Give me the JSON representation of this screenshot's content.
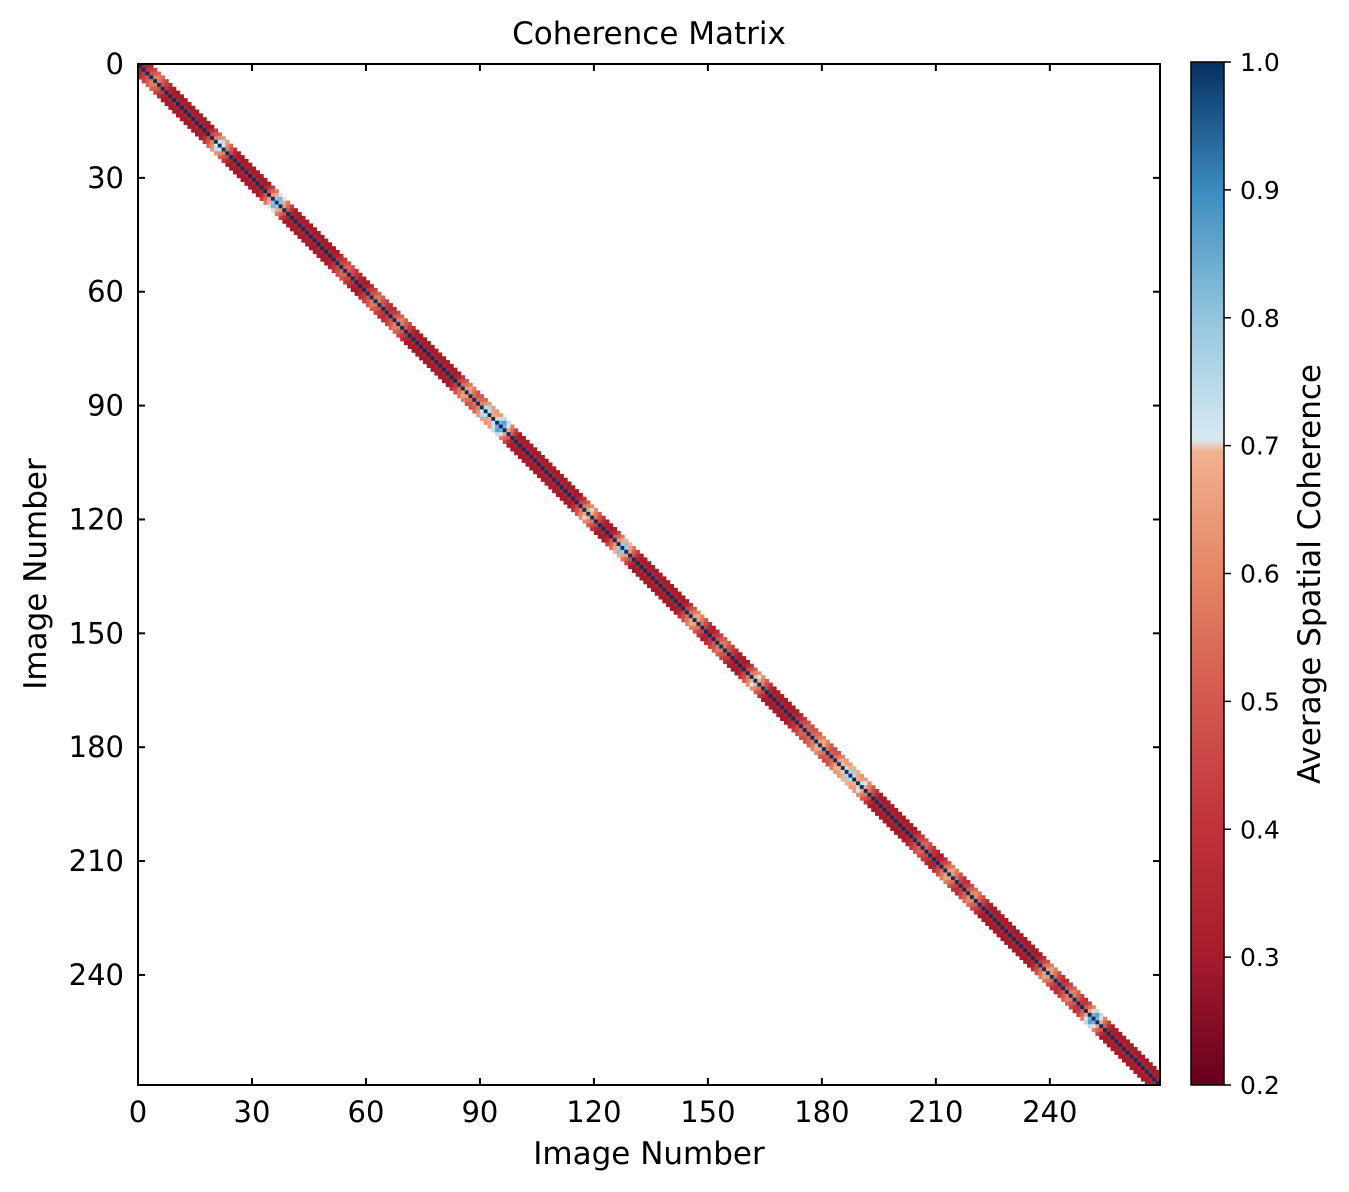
{
  "chart_data": {
    "type": "heatmap",
    "title": "Coherence Matrix",
    "xlabel": "Image Number",
    "ylabel": "Image Number",
    "x_ticks": [
      0,
      30,
      60,
      90,
      120,
      150,
      180,
      210,
      240
    ],
    "y_ticks": [
      0,
      30,
      60,
      90,
      120,
      150,
      180,
      210,
      240
    ],
    "xlim": [
      0,
      269
    ],
    "ylim": [
      0,
      269
    ],
    "y_inverted": true,
    "n_images": 269,
    "band_halfwidth": 3,
    "diagonal_value": 1.0,
    "band_values_by_offset": [
      1.0,
      0.33,
      0.3,
      0.3
    ],
    "high_coherence_centers": [
      {
        "image": 4,
        "value": 0.62
      },
      {
        "image": 21,
        "value": 0.78
      },
      {
        "image": 36,
        "value": 0.88
      },
      {
        "image": 54,
        "value": 0.55
      },
      {
        "image": 62,
        "value": 0.6
      },
      {
        "image": 68,
        "value": 0.62
      },
      {
        "image": 86,
        "value": 0.7
      },
      {
        "image": 91,
        "value": 0.8
      },
      {
        "image": 95,
        "value": 0.92
      },
      {
        "image": 118,
        "value": 0.74
      },
      {
        "image": 127,
        "value": 0.86
      },
      {
        "image": 146,
        "value": 0.72
      },
      {
        "image": 153,
        "value": 0.6
      },
      {
        "image": 162,
        "value": 0.75
      },
      {
        "image": 175,
        "value": 0.55
      },
      {
        "image": 179,
        "value": 0.72
      },
      {
        "image": 184,
        "value": 0.7
      },
      {
        "image": 187,
        "value": 0.82
      },
      {
        "image": 190,
        "value": 0.74
      },
      {
        "image": 206,
        "value": 0.55
      },
      {
        "image": 213,
        "value": 0.7
      },
      {
        "image": 219,
        "value": 0.65
      },
      {
        "image": 239,
        "value": 0.7
      },
      {
        "image": 245,
        "value": 0.62
      },
      {
        "image": 251,
        "value": 0.92
      }
    ],
    "colorbar": {
      "label": "Average Spatial Coherence",
      "min": 0.2,
      "max": 1.0,
      "ticks": [
        "0.2",
        "0.3",
        "0.4",
        "0.5",
        "0.6",
        "0.7",
        "0.8",
        "0.9",
        "1.0"
      ],
      "colormap": "RdBu",
      "stops": [
        {
          "v": 0.2,
          "color": "#67001f"
        },
        {
          "v": 0.3,
          "color": "#a51c2c"
        },
        {
          "v": 0.4,
          "color": "#c0323a"
        },
        {
          "v": 0.5,
          "color": "#d2584e"
        },
        {
          "v": 0.6,
          "color": "#e48664"
        },
        {
          "v": 0.695,
          "color": "#f2b08f"
        },
        {
          "v": 0.705,
          "color": "#d8e9f1"
        },
        {
          "v": 0.8,
          "color": "#92c5de"
        },
        {
          "v": 0.9,
          "color": "#3b8cc0"
        },
        {
          "v": 1.0,
          "color": "#053061"
        }
      ]
    }
  }
}
